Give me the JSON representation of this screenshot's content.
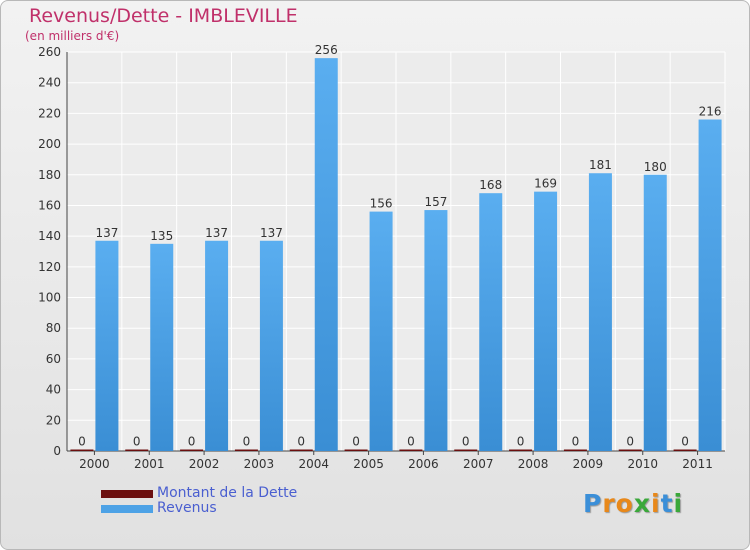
{
  "chart_data": {
    "type": "bar",
    "title": "Revenus/Dette - IMBLEVILLE",
    "subtitle": "(en milliers d'€)",
    "categories": [
      "2000",
      "2001",
      "2002",
      "2003",
      "2004",
      "2005",
      "2006",
      "2007",
      "2008",
      "2009",
      "2010",
      "2011"
    ],
    "series": [
      {
        "name": "Montant de la Dette",
        "color": "#6b0f0f",
        "values": [
          0,
          0,
          0,
          0,
          0,
          0,
          0,
          0,
          0,
          0,
          0,
          0
        ]
      },
      {
        "name": "Revenus",
        "color": "#4da2e6",
        "values": [
          137,
          135,
          137,
          137,
          256,
          156,
          157,
          168,
          169,
          181,
          180,
          216
        ]
      }
    ],
    "ylim": [
      0,
      260
    ],
    "yticks": [
      0,
      20,
      40,
      60,
      80,
      100,
      120,
      140,
      160,
      180,
      200,
      220,
      240,
      260
    ],
    "grid": true,
    "legend": "bottom-left",
    "xlabel": "",
    "ylabel": ""
  },
  "logo": {
    "letters": [
      "P",
      "r",
      "o",
      "x",
      "i",
      "t",
      "i"
    ],
    "colors": [
      "#3b8fd8",
      "#e8881a",
      "#e8881a",
      "#3aa83a",
      "#e8881a",
      "#3b8fd8",
      "#3aa83a"
    ]
  }
}
